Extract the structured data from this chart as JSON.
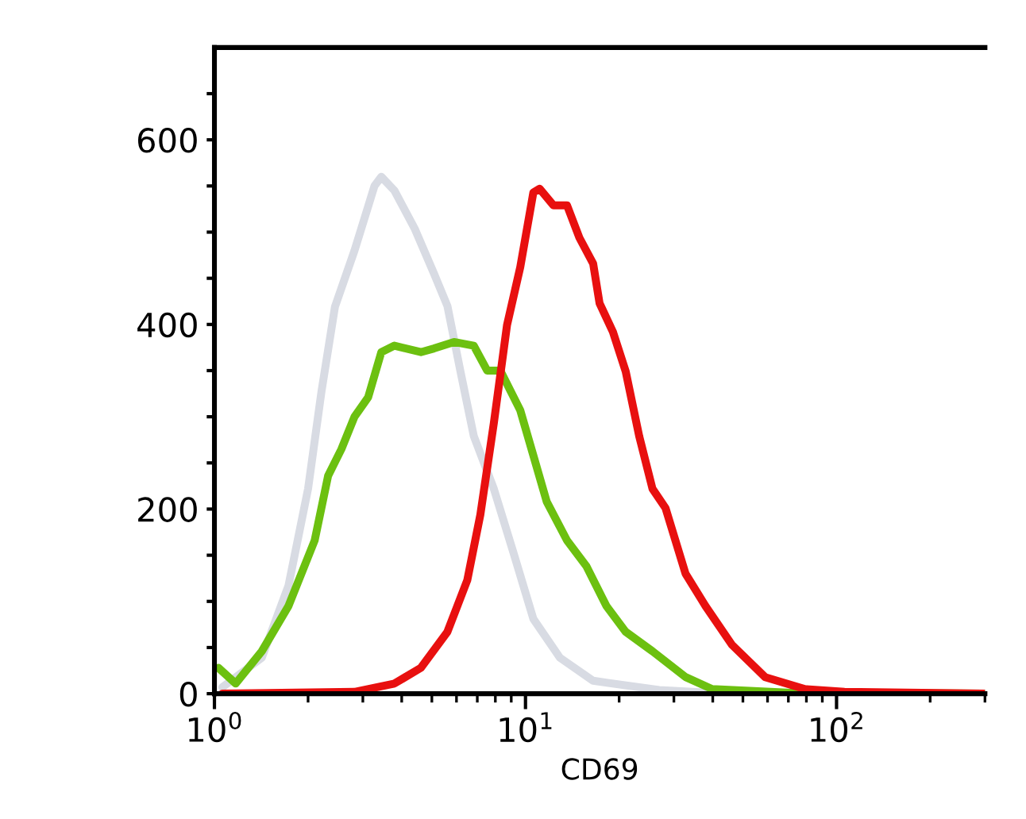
{
  "chart_data": {
    "type": "line",
    "xlabel": "CD69",
    "log": "x",
    "xlim": [
      1,
      300
    ],
    "ylim": [
      0,
      700
    ],
    "xticks": [
      {
        "value": 1,
        "label": "10$^{0}$"
      },
      {
        "value": 10,
        "label": "10$^{1}$"
      },
      {
        "value": 100,
        "label": "10$^{2}$"
      }
    ],
    "yticks": [
      0,
      {
        "value": 50,
        "label": null
      },
      {
        "value": 100,
        "label": null
      },
      {
        "value": 150,
        "label": null
      },
      200,
      {
        "value": 250,
        "label": null
      },
      {
        "value": 300,
        "label": null
      },
      {
        "value": 350,
        "label": null
      },
      400,
      {
        "value": 450,
        "label": null
      },
      {
        "value": 500,
        "label": null
      },
      {
        "value": 550,
        "label": null
      },
      600,
      {
        "value": 650,
        "label": null
      }
    ],
    "grid": false,
    "legend": false,
    "marker": "none",
    "line_style": "solid",
    "series": [
      {
        "color": "#d8dbe3",
        "x": [
          1.06,
          1.42,
          1.73,
          2.0,
          2.21,
          2.44,
          2.82,
          3.27,
          3.44,
          3.79,
          4.4,
          5.08,
          5.61,
          6.18,
          6.82,
          7.91,
          9.16,
          10.6,
          12.9,
          16.5,
          26.9,
          44.0,
          300
        ],
        "values": [
          7,
          39,
          117,
          222,
          328,
          419,
          480,
          550,
          560,
          545,
          504,
          455,
          420,
          349,
          279,
          222,
          152,
          81,
          39,
          14,
          4,
          0,
          0
        ]
      },
      {
        "color": "#6cc010",
        "x": [
          1.03,
          1.17,
          1.42,
          1.73,
          2.1,
          2.32,
          2.56,
          2.82,
          3.12,
          3.44,
          3.79,
          4.61,
          5.08,
          5.89,
          6.82,
          7.53,
          8.3,
          9.62,
          10.6,
          11.7,
          13.6,
          15.7,
          18.2,
          21.0,
          25.6,
          32.7,
          39.8,
          71.6,
          300
        ],
        "values": [
          28,
          11,
          46,
          95,
          166,
          236,
          265,
          300,
          321,
          370,
          377,
          370,
          374,
          381,
          377,
          350,
          350,
          307,
          258,
          208,
          166,
          138,
          95,
          67,
          46,
          18,
          5,
          1,
          0
        ]
      },
      {
        "color": "#e8100f",
        "x": [
          1.06,
          2.82,
          3.79,
          4.61,
          5.61,
          6.5,
          7.16,
          7.91,
          8.72,
          9.62,
          10.6,
          11.1,
          12.3,
          13.6,
          14.9,
          16.5,
          17.3,
          19.1,
          21.0,
          23.2,
          25.6,
          28.2,
          32.7,
          37.9,
          46.1,
          58.9,
          79.1,
          106,
          300
        ],
        "values": [
          0,
          2,
          11,
          28,
          67,
          123,
          194,
          293,
          399,
          462,
          543,
          547,
          529,
          529,
          494,
          466,
          423,
          392,
          349,
          279,
          222,
          201,
          130,
          95,
          53,
          18,
          5,
          2,
          0
        ]
      }
    ]
  }
}
